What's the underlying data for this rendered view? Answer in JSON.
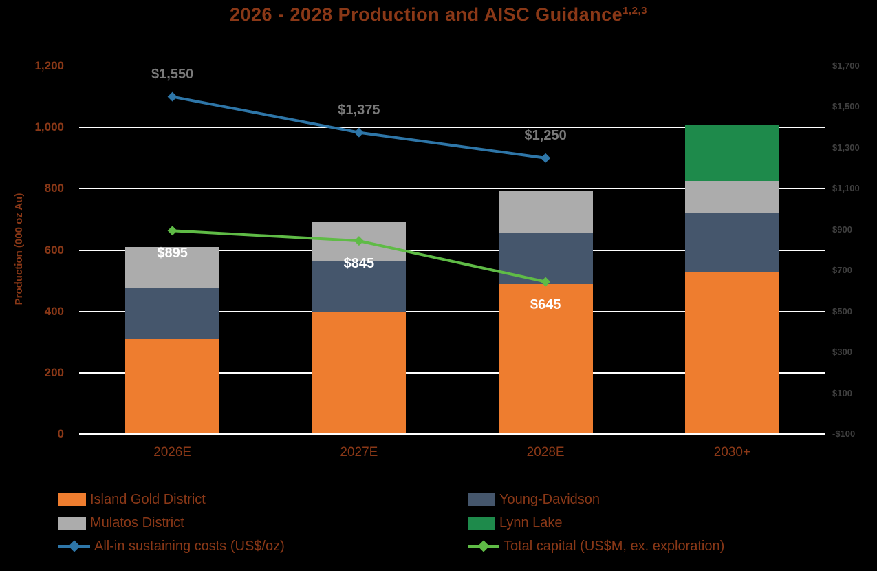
{
  "title": {
    "text": "2026 - 2028 Production and AISC Guidance",
    "superscript": "1,2,3"
  },
  "left_axis": {
    "label": "Production (000 oz Au)",
    "min": 0,
    "max": 1200,
    "ticks": [
      {
        "label": "1,200",
        "value": 1200
      },
      {
        "label": "1,000",
        "value": 1000
      },
      {
        "label": "800",
        "value": 800
      },
      {
        "label": "600",
        "value": 600
      },
      {
        "label": "400",
        "value": 400
      },
      {
        "label": "200",
        "value": 200
      },
      {
        "label": "0",
        "value": 0
      }
    ]
  },
  "right_axis": {
    "min": -100,
    "max": 1700,
    "ticks": [
      {
        "label": "$1,700",
        "value": 1700
      },
      {
        "label": "$1,500",
        "value": 1500
      },
      {
        "label": "$1,300",
        "value": 1300
      },
      {
        "label": "$1,100",
        "value": 1100
      },
      {
        "label": "$900",
        "value": 900
      },
      {
        "label": "$700",
        "value": 700
      },
      {
        "label": "$500",
        "value": 500
      },
      {
        "label": "$300",
        "value": 300
      },
      {
        "label": "$100",
        "value": 100
      },
      {
        "label": "-$100",
        "value": -100
      }
    ]
  },
  "chart_data": {
    "type": "bar",
    "subtype": "stacked-bars-with-lines",
    "title": "2026 - 2028 Production and AISC Guidance",
    "ylabel": "Production (000 oz Au)",
    "left_axis_range": [
      0,
      1200
    ],
    "right_axis_range": [
      -100,
      1700
    ],
    "grid": true,
    "legend_position": "bottom",
    "categories": [
      "2026E",
      "2027E",
      "2028E",
      "2030+"
    ],
    "series": [
      {
        "name": "Island Gold District",
        "color": "#EE7D2F",
        "values": [
          310,
          400,
          490,
          530
        ]
      },
      {
        "name": "Young-Davidson",
        "color": "#45566C",
        "values": [
          165,
          165,
          165,
          190
        ]
      },
      {
        "name": "Mulatos District",
        "color": "#ACACAC",
        "values": [
          135,
          125,
          140,
          105
        ]
      },
      {
        "name": "Lynn Lake",
        "color": "#1E8A4B",
        "values": [
          0,
          0,
          0,
          185
        ]
      }
    ],
    "lines": [
      {
        "name": "All-in sustaining costs (US$/oz)",
        "color": "#2E76A8",
        "axis": "right",
        "values": [
          1550,
          1375,
          1250,
          null
        ],
        "labels": [
          "$1,550",
          "$1,375",
          "$1,250",
          ""
        ],
        "label_color": "#7A7A7A",
        "label_position": "above"
      },
      {
        "name": "Total capital (US$M, ex. exploration)",
        "color": "#5FBB46",
        "axis": "right",
        "values": [
          895,
          845,
          645,
          null
        ],
        "labels": [
          "$895",
          "$845",
          "$645",
          ""
        ],
        "label_color": "#FFFFFF",
        "label_position": "below"
      }
    ]
  },
  "legend": [
    {
      "label": "Island Gold District",
      "marker": "rect",
      "color": "#EE7D2F"
    },
    {
      "label": "Young-Davidson",
      "marker": "rect",
      "color": "#45566C"
    },
    {
      "label": "Mulatos District",
      "marker": "rect",
      "color": "#ACACAC"
    },
    {
      "label": "Lynn Lake",
      "marker": "rect",
      "color": "#1E8A4B"
    },
    {
      "label": "All-in sustaining costs (US$/oz)",
      "marker": "line-diamond",
      "color": "#2E76A8"
    },
    {
      "label": "Total capital (US$M, ex. exploration)",
      "marker": "line-diamond",
      "color": "#5FBB46"
    }
  ],
  "colors": {
    "background": "#000000",
    "grid": "#FFFFFF",
    "title_text": "#8A3817",
    "axis_text": "#8A3817",
    "right_axis_text": "#3F3F3F"
  }
}
